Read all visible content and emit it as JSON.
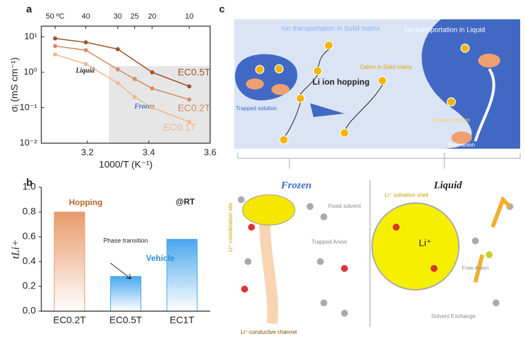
{
  "panels": [
    "a",
    "b",
    "c"
  ],
  "chart_data": [
    {
      "type": "line",
      "log_y": true,
      "xlabel": "1000/T (K⁻¹)",
      "ylabel": "σᵢ (mS cm⁻¹)",
      "xlim": [
        3.05,
        3.6
      ],
      "xticks": [
        3.2,
        3.4,
        3.6
      ],
      "top_xticks": [
        {
          "value": 3.095,
          "label": "50 ºC"
        },
        {
          "value": 3.195,
          "label": "40"
        },
        {
          "value": 3.299,
          "label": "30"
        },
        {
          "value": 3.354,
          "label": "25"
        },
        {
          "value": 3.411,
          "label": "20"
        },
        {
          "value": 3.532,
          "label": "10"
        }
      ],
      "ylim": [
        0.01,
        20
      ],
      "yticks": [
        {
          "value": 0.01,
          "label": "10⁻²"
        },
        {
          "value": 0.1,
          "label": "10⁻¹"
        },
        {
          "value": 1,
          "label": "10⁰"
        },
        {
          "value": 10,
          "label": "10¹"
        }
      ],
      "shaded_xrange": [
        3.27,
        3.6
      ],
      "shaded_ymax": 1.5,
      "annotations": [
        "Liquid",
        "Frozen"
      ],
      "series": [
        {
          "name": "EC0.5T",
          "color": "#a0522d",
          "x": [
            3.095,
            3.195,
            3.299,
            3.411,
            3.532
          ],
          "values": [
            9,
            7,
            4.5,
            1.0,
            0.4
          ]
        },
        {
          "name": "EC0.2T",
          "color": "#d98c5f",
          "x": [
            3.095,
            3.195,
            3.299,
            3.354,
            3.411,
            3.532
          ],
          "values": [
            5.5,
            4.2,
            1.2,
            0.65,
            0.35,
            0.17
          ]
        },
        {
          "name": "EC0.1T",
          "color": "#f0b98e",
          "x": [
            3.095,
            3.195,
            3.299,
            3.354,
            3.411,
            3.532
          ],
          "values": [
            3.2,
            1.7,
            0.5,
            0.2,
            0.1,
            0.04
          ]
        }
      ]
    },
    {
      "type": "bar",
      "ylabel": "tLi+",
      "categories": [
        "EC0.2T",
        "EC0.5T",
        "EC1T"
      ],
      "values": [
        0.8,
        0.28,
        0.58
      ],
      "colors": [
        "#e89a6a",
        "#4aa8ee",
        "#4aa8ee"
      ],
      "ylim": [
        0,
        1.0
      ],
      "yticks": [
        {
          "value": 0,
          "label": "0.0"
        },
        0.2,
        0.4,
        0.6,
        0.8,
        {
          "value": 1.0,
          "label": "1.0"
        }
      ],
      "annotations": [
        "Hopping",
        "Phase transition",
        "Vehicle",
        "@RT"
      ]
    }
  ],
  "diagram": {
    "labels": [
      "Ion transportation in Solid matrix",
      "Ion transportation in Liquid",
      "Li ion hopping",
      "Cation in Solid matrix",
      "Trapped solution",
      "Solvated cation",
      "Free anion",
      "Frozen",
      "Liquid",
      "Li⁺-coordination site",
      "Fixed solvent",
      "Trapped Anion",
      "Li⁺ solvation shell",
      "Li⁺",
      "Free Anion",
      "Solvent Exchange",
      "Li⁺-conductive channel"
    ]
  }
}
